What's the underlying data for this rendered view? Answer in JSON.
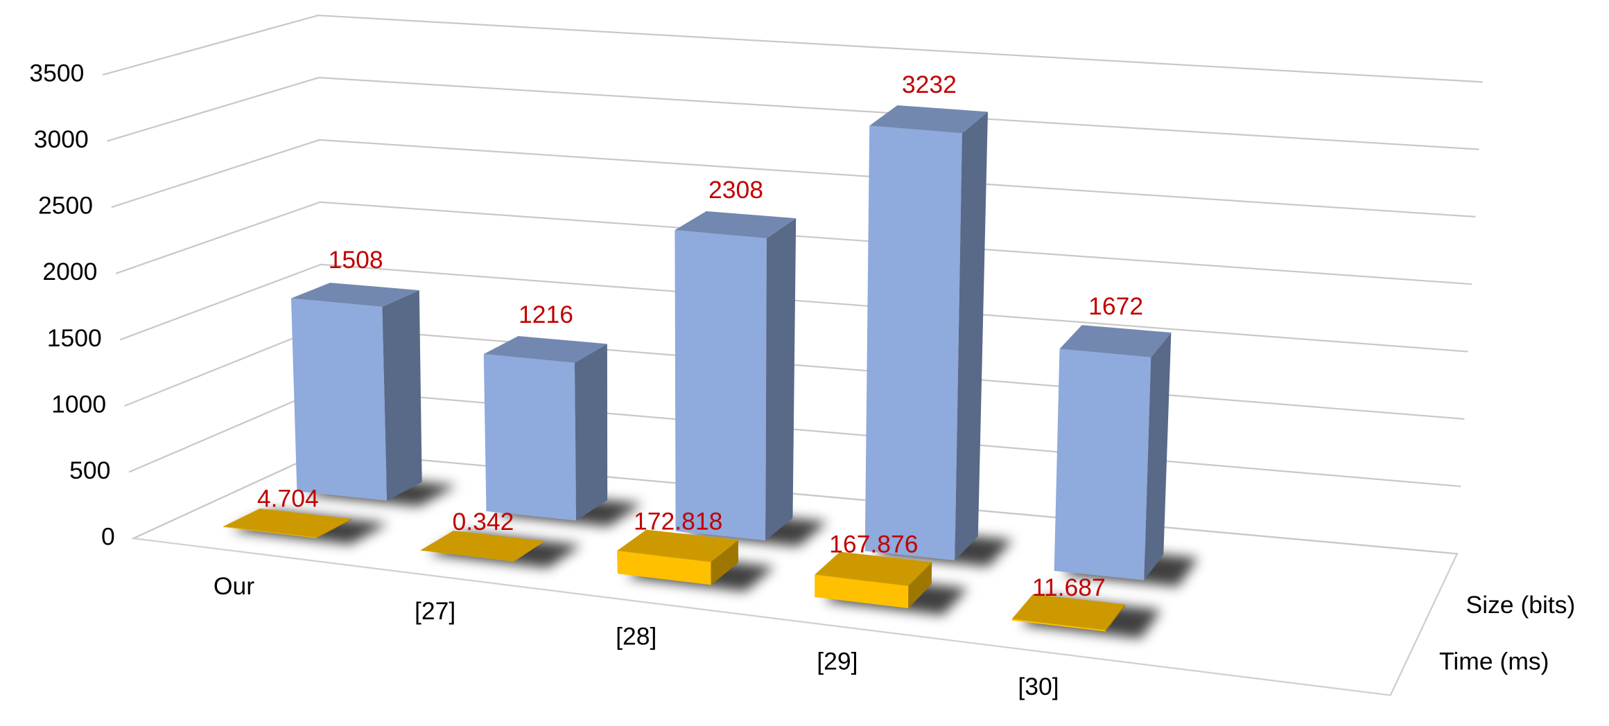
{
  "chart_data": {
    "type": "bar3d",
    "categories": [
      "Our",
      "[27]",
      "[28]",
      "[29]",
      "[30]"
    ],
    "series": [
      {
        "name": "Time (ms)",
        "color": "#ffc000",
        "values": [
          4.704,
          0.342,
          172.818,
          167.876,
          11.687
        ]
      },
      {
        "name": "Size (bits)",
        "color": "#8faadc",
        "values": [
          1508,
          1216,
          2308,
          3232,
          1672
        ]
      }
    ],
    "ylim": [
      0,
      3500
    ],
    "yticks": [
      0,
      500,
      1000,
      1500,
      2000,
      2500,
      3000,
      3500
    ],
    "grid": true,
    "label_color": "#c00000"
  }
}
